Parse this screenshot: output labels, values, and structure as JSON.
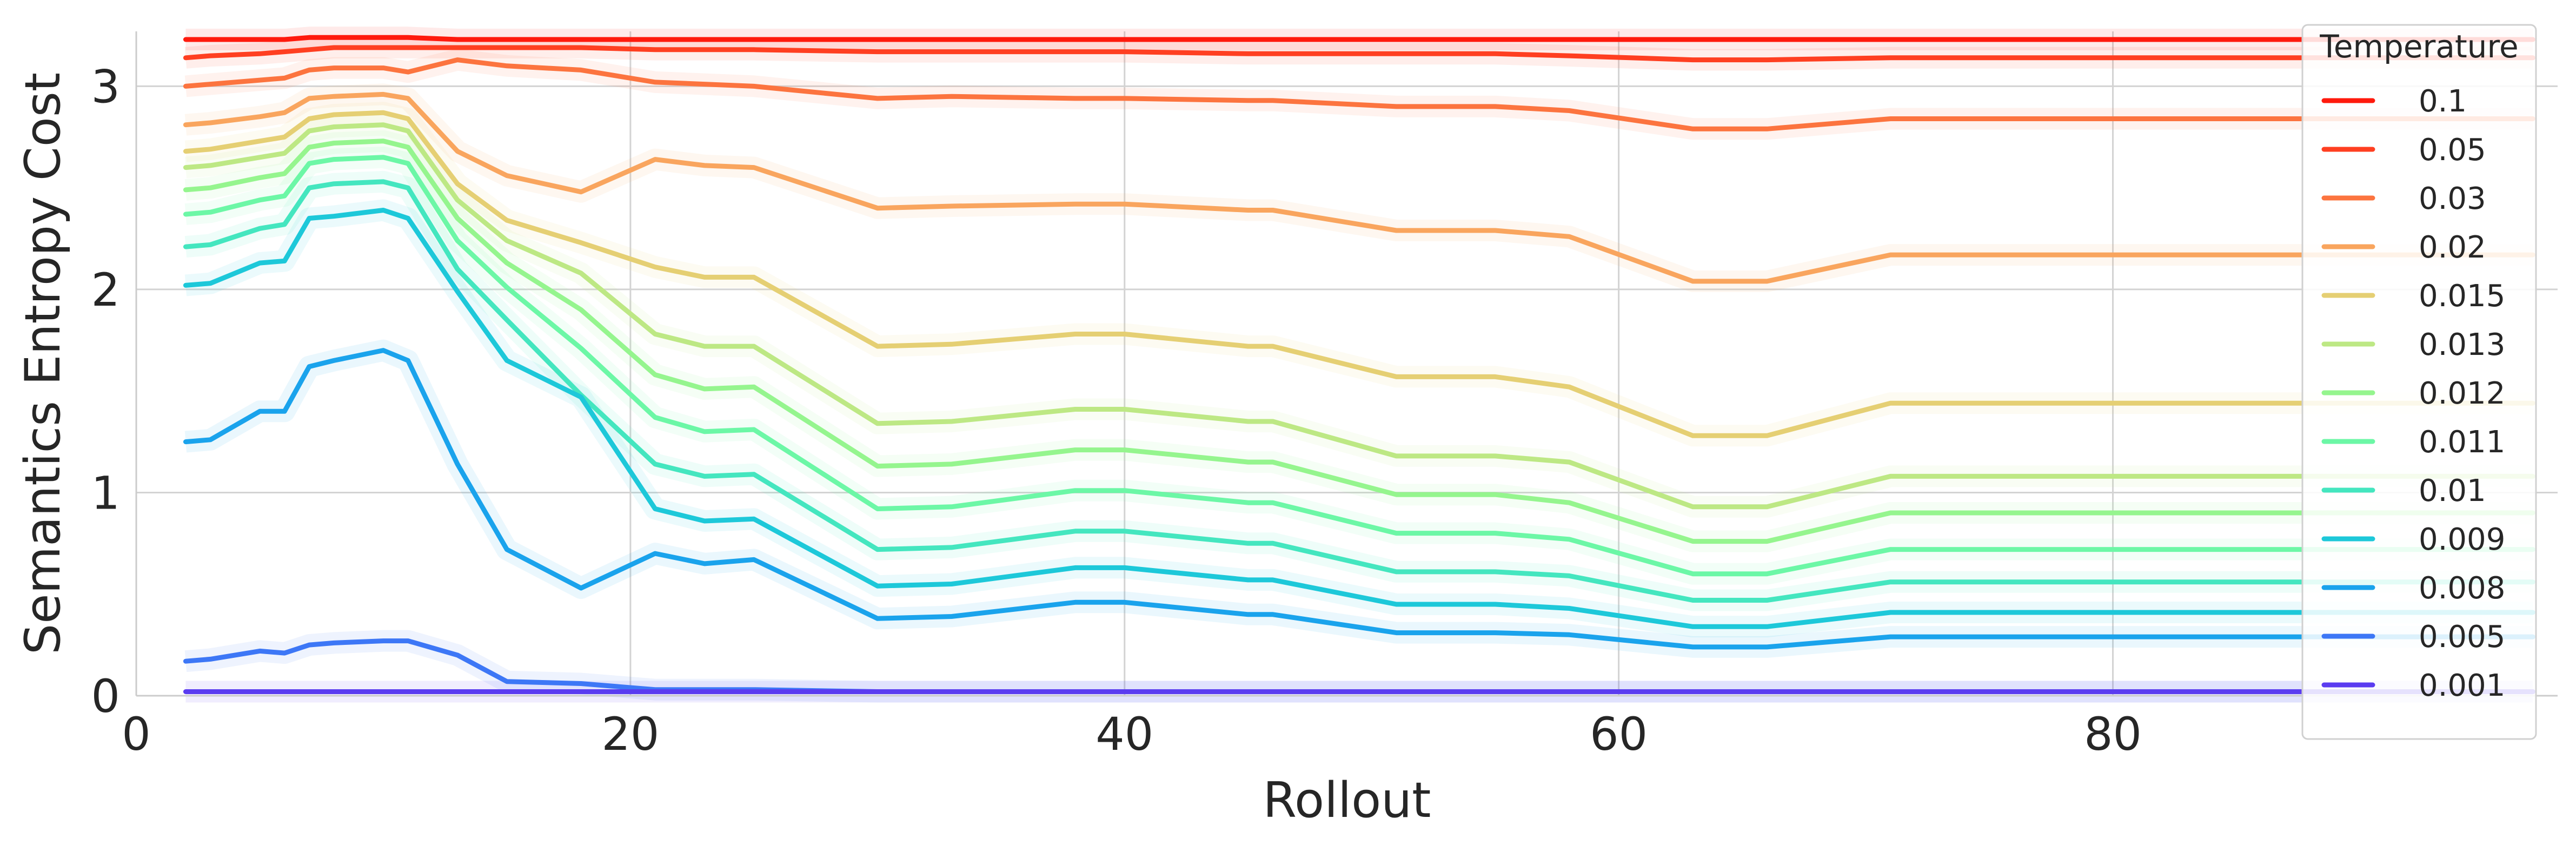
{
  "chart_data": {
    "type": "line",
    "xlabel": "Rollout",
    "ylabel": "Semantics Entropy Cost",
    "xlim": [
      0,
      98
    ],
    "ylim": [
      0,
      3.27
    ],
    "xticks": [
      0,
      20,
      40,
      60,
      80
    ],
    "yticks": [
      0,
      1,
      2,
      3
    ],
    "grid": true,
    "legend": {
      "title": "Temperature",
      "position": "top-right"
    },
    "x": [
      2,
      3,
      5,
      6,
      7,
      8,
      10,
      11,
      13,
      15,
      18,
      21,
      23,
      25,
      30,
      33,
      38,
      40,
      45,
      46,
      51,
      55,
      58,
      63,
      66,
      71,
      97
    ],
    "series": [
      {
        "name": "0.1",
        "color": "#ff1a0d",
        "values": [
          3.23,
          3.23,
          3.23,
          3.23,
          3.24,
          3.24,
          3.24,
          3.24,
          3.23,
          3.23,
          3.23,
          3.23,
          3.23,
          3.23,
          3.23,
          3.23,
          3.23,
          3.23,
          3.23,
          3.23,
          3.23,
          3.23,
          3.23,
          3.23,
          3.23,
          3.23,
          3.23
        ]
      },
      {
        "name": "0.05",
        "color": "#ff3f21",
        "values": [
          3.14,
          3.15,
          3.16,
          3.17,
          3.18,
          3.19,
          3.19,
          3.19,
          3.19,
          3.19,
          3.19,
          3.18,
          3.18,
          3.18,
          3.17,
          3.17,
          3.17,
          3.17,
          3.16,
          3.16,
          3.16,
          3.16,
          3.15,
          3.13,
          3.13,
          3.14,
          3.14
        ]
      },
      {
        "name": "0.03",
        "color": "#fc743f",
        "values": [
          3.0,
          3.01,
          3.03,
          3.04,
          3.08,
          3.09,
          3.09,
          3.07,
          3.13,
          3.1,
          3.08,
          3.02,
          3.01,
          3.0,
          2.94,
          2.95,
          2.94,
          2.94,
          2.93,
          2.93,
          2.9,
          2.9,
          2.88,
          2.79,
          2.79,
          2.84,
          2.84
        ]
      },
      {
        "name": "0.02",
        "color": "#f9a55e",
        "values": [
          2.81,
          2.82,
          2.85,
          2.87,
          2.94,
          2.95,
          2.96,
          2.94,
          2.68,
          2.56,
          2.48,
          2.64,
          2.61,
          2.6,
          2.4,
          2.41,
          2.42,
          2.42,
          2.39,
          2.39,
          2.29,
          2.29,
          2.26,
          2.04,
          2.04,
          2.17,
          2.17
        ]
      },
      {
        "name": "0.015",
        "color": "#e5cf73",
        "values": [
          2.68,
          2.69,
          2.73,
          2.75,
          2.84,
          2.86,
          2.87,
          2.84,
          2.52,
          2.34,
          2.23,
          2.11,
          2.06,
          2.06,
          1.72,
          1.73,
          1.78,
          1.78,
          1.72,
          1.72,
          1.57,
          1.57,
          1.52,
          1.28,
          1.28,
          1.44,
          1.44
        ]
      },
      {
        "name": "0.013",
        "color": "#bde884",
        "values": [
          2.6,
          2.61,
          2.65,
          2.67,
          2.78,
          2.8,
          2.81,
          2.78,
          2.44,
          2.24,
          2.08,
          1.78,
          1.72,
          1.72,
          1.34,
          1.35,
          1.41,
          1.41,
          1.35,
          1.35,
          1.18,
          1.18,
          1.15,
          0.93,
          0.93,
          1.08,
          1.08
        ]
      },
      {
        "name": "0.012",
        "color": "#95f58e",
        "values": [
          2.49,
          2.5,
          2.55,
          2.57,
          2.7,
          2.72,
          2.73,
          2.7,
          2.35,
          2.13,
          1.9,
          1.58,
          1.51,
          1.52,
          1.13,
          1.14,
          1.21,
          1.21,
          1.15,
          1.15,
          0.99,
          0.99,
          0.95,
          0.76,
          0.76,
          0.9,
          0.9
        ]
      },
      {
        "name": "0.011",
        "color": "#6cf7a6",
        "values": [
          2.37,
          2.38,
          2.44,
          2.46,
          2.62,
          2.64,
          2.65,
          2.62,
          2.24,
          2.01,
          1.71,
          1.37,
          1.3,
          1.31,
          0.92,
          0.93,
          1.01,
          1.01,
          0.95,
          0.95,
          0.8,
          0.8,
          0.77,
          0.6,
          0.6,
          0.72,
          0.72
        ]
      },
      {
        "name": "0.01",
        "color": "#44e6bf",
        "values": [
          2.21,
          2.22,
          2.3,
          2.32,
          2.5,
          2.52,
          2.53,
          2.5,
          2.1,
          1.85,
          1.48,
          1.14,
          1.08,
          1.09,
          0.72,
          0.73,
          0.81,
          0.81,
          0.75,
          0.75,
          0.61,
          0.61,
          0.59,
          0.47,
          0.47,
          0.56,
          0.56
        ]
      },
      {
        "name": "0.009",
        "color": "#1dc8d9",
        "values": [
          2.02,
          2.03,
          2.13,
          2.14,
          2.35,
          2.36,
          2.39,
          2.35,
          1.99,
          1.65,
          1.47,
          0.92,
          0.86,
          0.87,
          0.54,
          0.55,
          0.63,
          0.63,
          0.57,
          0.57,
          0.45,
          0.45,
          0.43,
          0.34,
          0.34,
          0.41,
          0.41
        ]
      },
      {
        "name": "0.008",
        "color": "#1aa3ec",
        "values": [
          1.25,
          1.26,
          1.4,
          1.4,
          1.62,
          1.65,
          1.7,
          1.65,
          1.14,
          0.72,
          0.53,
          0.7,
          0.65,
          0.67,
          0.38,
          0.39,
          0.46,
          0.46,
          0.4,
          0.4,
          0.31,
          0.31,
          0.3,
          0.24,
          0.24,
          0.29,
          0.29
        ]
      },
      {
        "name": "0.005",
        "color": "#3d77f6",
        "values": [
          0.17,
          0.18,
          0.22,
          0.21,
          0.25,
          0.26,
          0.27,
          0.27,
          0.2,
          0.07,
          0.06,
          0.03,
          0.03,
          0.03,
          0.02,
          0.02,
          0.02,
          0.02,
          0.02,
          0.02,
          0.02,
          0.02,
          0.02,
          0.02,
          0.02,
          0.02,
          0.02
        ]
      },
      {
        "name": "0.001",
        "color": "#5a3cf0",
        "values": [
          0.02,
          0.02,
          0.02,
          0.02,
          0.02,
          0.02,
          0.02,
          0.02,
          0.02,
          0.02,
          0.02,
          0.02,
          0.02,
          0.02,
          0.02,
          0.02,
          0.02,
          0.02,
          0.02,
          0.02,
          0.02,
          0.02,
          0.02,
          0.02,
          0.02,
          0.02,
          0.02
        ]
      }
    ]
  }
}
